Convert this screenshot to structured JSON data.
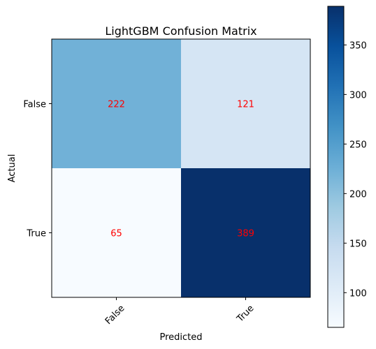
{
  "chart_data": {
    "type": "heatmap",
    "title": "LightGBM Confusion Matrix",
    "xlabel": "Predicted",
    "ylabel": "Actual",
    "x_categories": [
      "False",
      "True"
    ],
    "y_categories": [
      "False",
      "True"
    ],
    "values": [
      [
        222,
        121
      ],
      [
        65,
        389
      ]
    ],
    "cell_text_color": "#ff0000",
    "colormap": "Blues",
    "color_range": [
      65,
      389
    ],
    "colorbar_ticks": [
      100,
      150,
      200,
      250,
      300,
      350
    ],
    "colorbar_tick_labels": [
      "100",
      "150",
      "200",
      "250",
      "300",
      "350"
    ],
    "x_tick_rotation_deg": 45,
    "grid": false
  }
}
